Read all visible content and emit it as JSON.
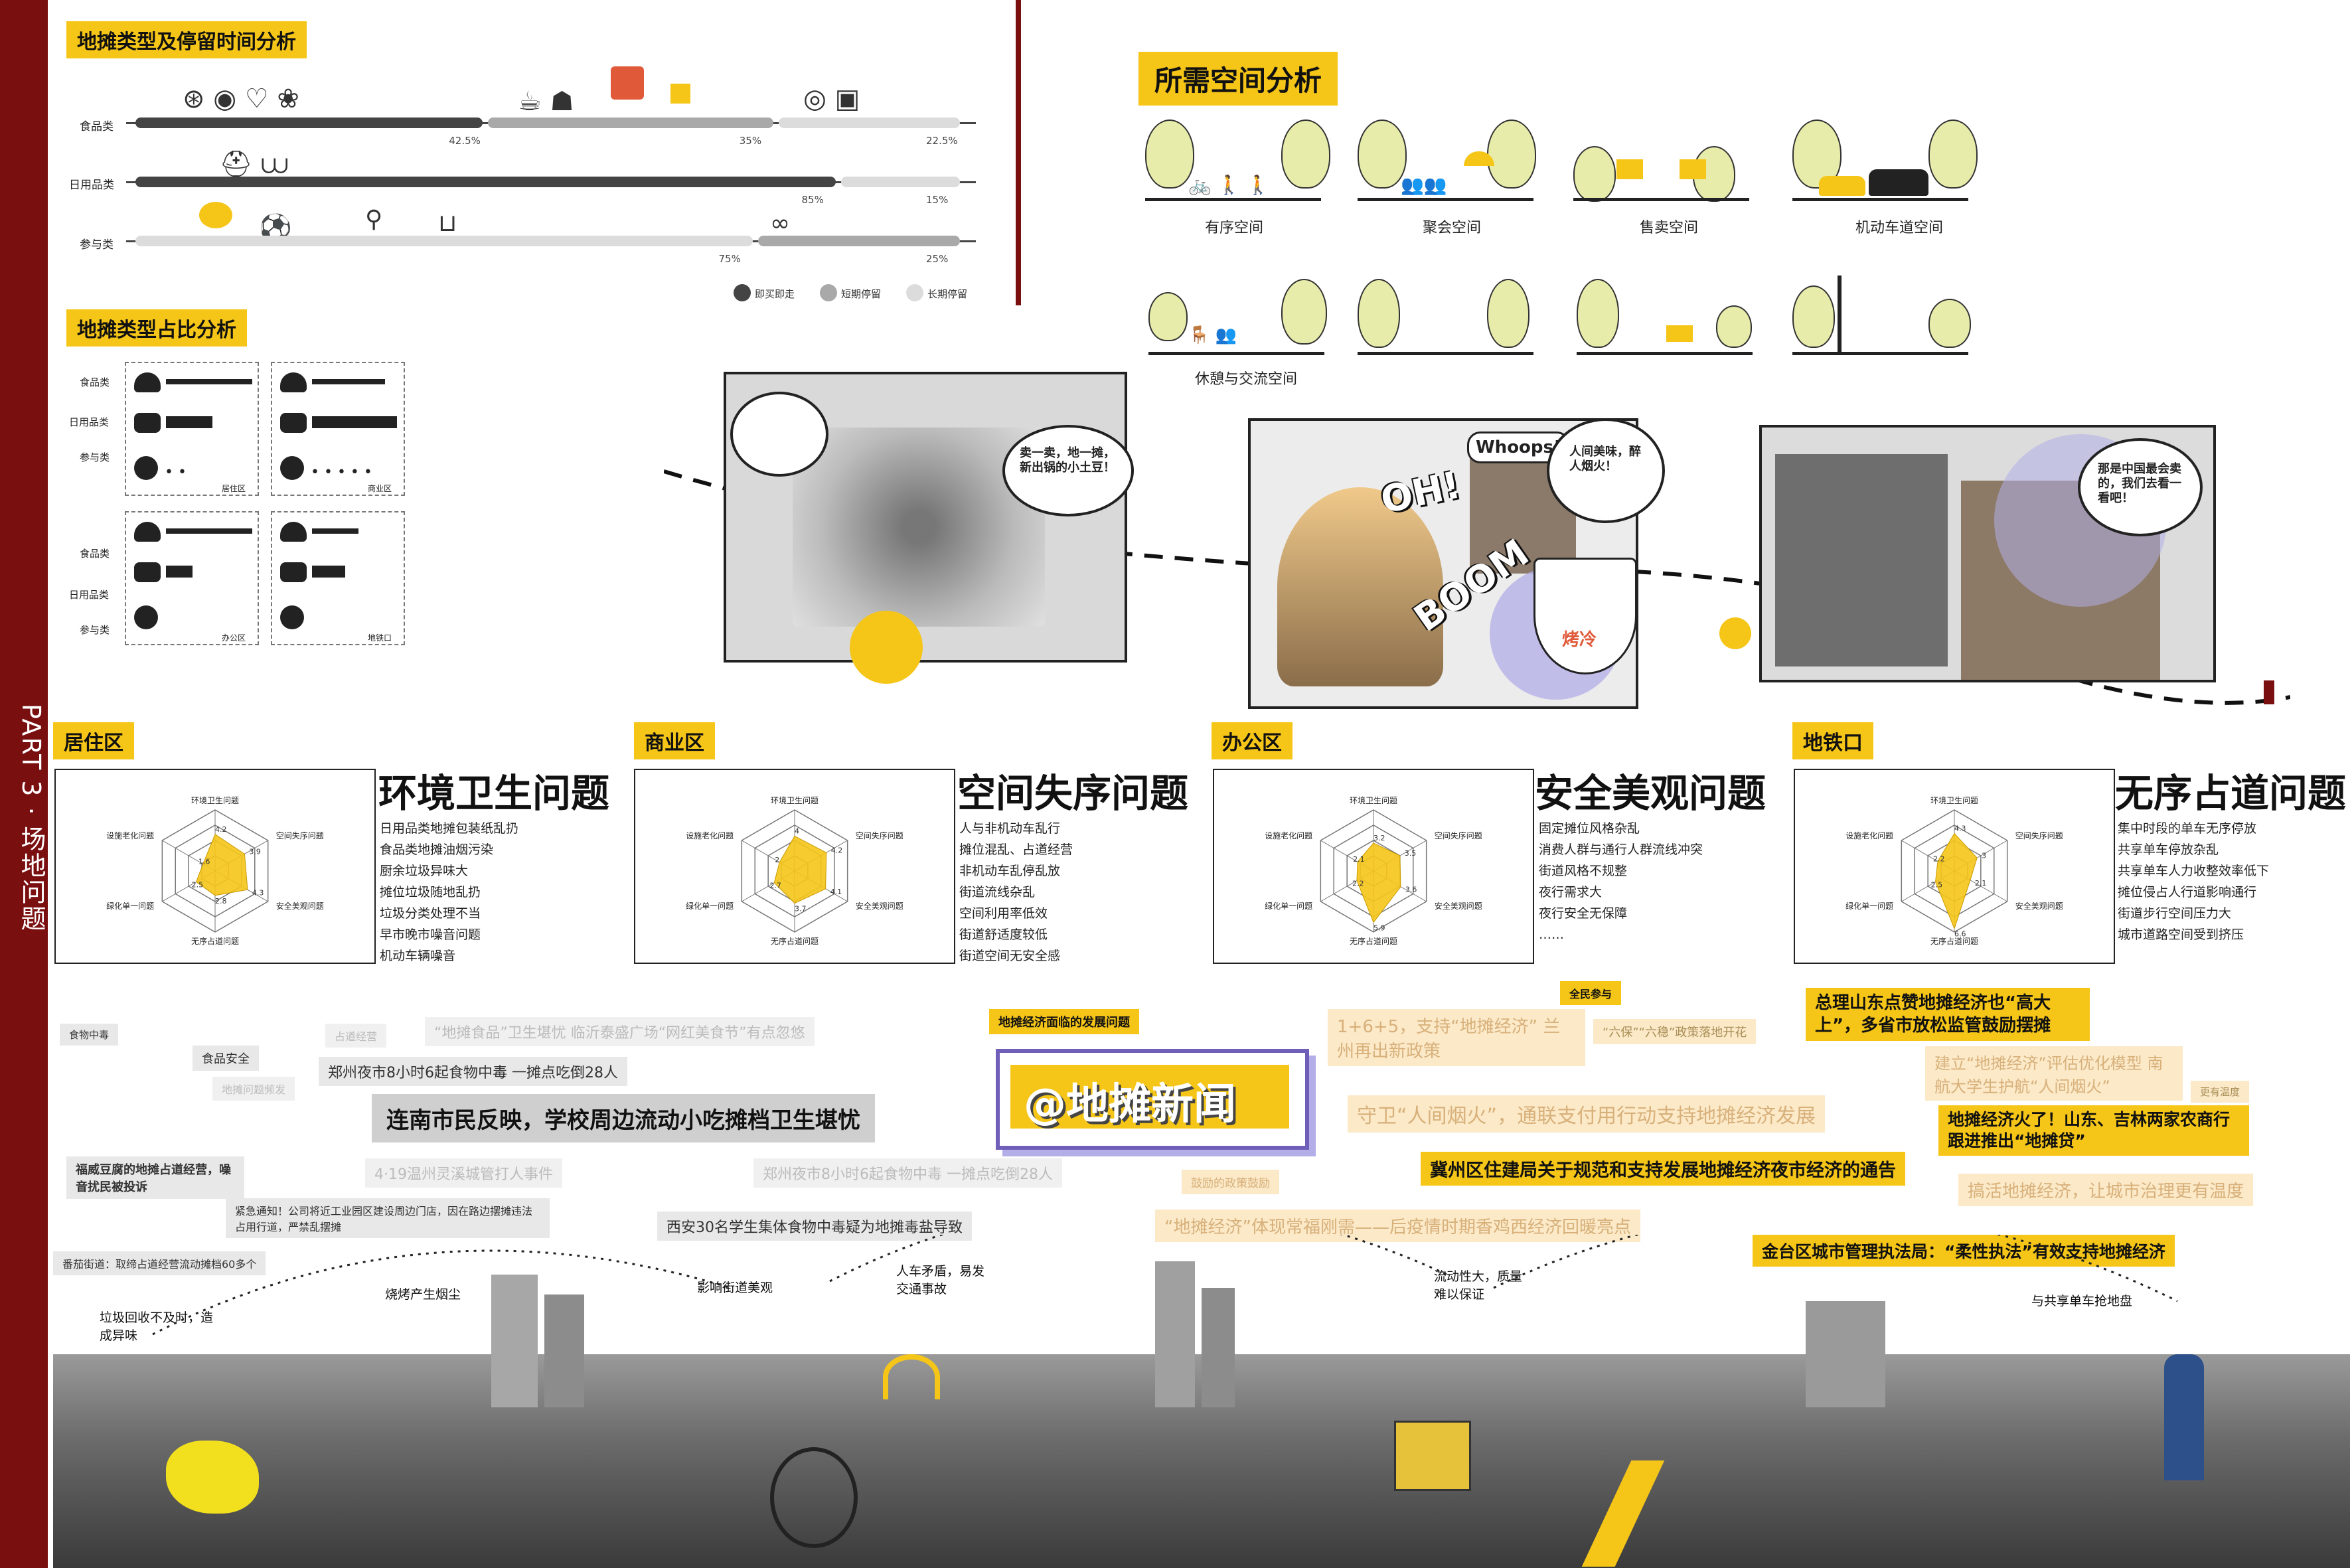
{
  "side": {
    "part_label": "PART 3 · 场地问题"
  },
  "stall_time": {
    "title": "地摊类型及停留时间分析",
    "rows": [
      {
        "label": "食品类",
        "segments": [
          42.5,
          35,
          22.5
        ],
        "pcts": [
          "42.5%",
          "35%",
          "22.5%"
        ]
      },
      {
        "label": "日用品类",
        "segments": [
          85,
          15
        ],
        "pcts": [
          "85%",
          "15%"
        ]
      },
      {
        "label": "参与类",
        "segments": [
          75,
          25
        ],
        "pcts": [
          "75%",
          "25%"
        ]
      }
    ],
    "legend": [
      "即买即走",
      "短期停留",
      "长期停留"
    ],
    "colors": {
      "instant": "#444444",
      "short": "#a9a9a9",
      "long": "#dcdcdc"
    }
  },
  "stall_ratio": {
    "title": "地摊类型占比分析",
    "row_labels": [
      "食品类",
      "日用品类",
      "参与类"
    ],
    "zones": [
      "居住区",
      "商业区",
      "办公区",
      "地铁口"
    ]
  },
  "space": {
    "title": "所需空间分析",
    "items": [
      "有序空间",
      "聚会空间",
      "售卖空间",
      "机动车道空间",
      "休憩与交流空间"
    ]
  },
  "comics": {
    "bubble1": "卖一卖，地一摊，新出锅的小土豆！",
    "bubble2": "人间美味，醉人烟火！",
    "bubble3": "那是中国最会卖的，我们去看一看吧！",
    "fx_oh": "OH!",
    "fx_whoops": "Whoops!",
    "fx_boom": "BOOM",
    "fx_boom2": "BOOM",
    "cup_label": "烤冷"
  },
  "zones": [
    {
      "label": "居住区",
      "problem": "环境卫生问题",
      "items": [
        "日用品类地摊包装纸乱扔",
        "食品类地摊油烟污染",
        "厨余垃圾异味大",
        "摊位垃圾随地乱扔",
        "垃圾分类处理不当",
        "早市晚市噪音问题",
        "机动车辆噪音"
      ]
    },
    {
      "label": "商业区",
      "problem": "空间失序问题",
      "items": [
        "人与非机动车乱行",
        "摊位混乱、占道经营",
        "非机动车乱停乱放",
        "街道流线杂乱",
        "空间利用率低效",
        "街道舒适度较低",
        "街道空间无安全感"
      ]
    },
    {
      "label": "办公区",
      "problem": "安全美观问题",
      "items": [
        "固定摊位风格杂乱",
        "消费人群与通行人群流线冲突",
        "街道风格不规整",
        "夜行需求大",
        "夜行安全无保障",
        "……"
      ]
    },
    {
      "label": "地铁口",
      "problem": "无序占道问题",
      "items": [
        "集中时段的单车无序停放",
        "共享单车停放杂乱",
        "共享单车人力收整效率低下",
        "摊位侵占人行道影响通行",
        "街道步行空间压力大",
        "城市道路空间受到挤压"
      ]
    }
  ],
  "radar": {
    "axes": [
      "环境卫生问题",
      "空间失序问题",
      "安全美观问题",
      "无序占道问题",
      "绿化单一问题",
      "设施老化问题"
    ],
    "zone_values": [
      [
        4.2,
        3.9,
        4.3,
        2.8,
        2.5,
        1.6
      ],
      [
        4,
        4.2,
        4.1,
        3.7,
        2.7,
        2
      ],
      [
        3.2,
        3.5,
        3.6,
        5.9,
        2.2,
        2.1
      ],
      [
        4.3,
        3,
        2.1,
        6.6,
        2.5,
        2.2
      ]
    ]
  },
  "news": {
    "logo": "@地摊新闻",
    "headline_main": "连南市民反映，学校周边流动小吃摊档卫生堪忧",
    "y1": "总理山东点赞地摊经济也“高大上”，多省市放松监管鼓励摆摊",
    "y2": "冀州区住建局关于规范和支持发展地摊经济夜市经济的通告",
    "y3": "地摊经济火了！山东、吉林两家农商行跟进推出“地摊贷”",
    "y4": "地摊经济面临的发展问题",
    "y5": "金台区城市管理执法局：“柔性执法”有效支持地摊经济",
    "y6": "全民参与",
    "g1": "郑州夜市8小时6起食物中毒 一摊点吃倒28人",
    "g2": "西安30名学生集体食物中毒疑为地摊毒盐导致",
    "g3": "“地摊食品”卫生堪忧 临沂泰盛广场“网红美食节”有点忽悠",
    "g4": "4·19温州灵溪城管打人事件",
    "g5": "紧急通知！公司将近工业园区建设周边门店，因在路边摆摊违法占用行道，严禁乱摆摊",
    "g6": "福威豆腐的地摊占道经营，噪音扰民被投诉",
    "g7": "食品安全",
    "g8": "占道经营",
    "g9": "地摊问题频发",
    "ly1": "1+6+5，支持“地摊经济” 兰州再出新政策",
    "ly2": "守卫“人间烟火”，通联支付用行动支持地摊经济发展",
    "ly3": "“地摊经济”体现常福刚需——后疫情时期香鸡西经济回暖亮点",
    "ly4": "建立“地摊经济”评估优化模型 南航大学生护航“人间烟火”",
    "ly5": "搞活地摊经济，让城市治理更有温度",
    "ly6": "“六保”“六稳”政策落地开花",
    "ly7": "更有温度",
    "ly8": "鼓励的政策鼓励"
  },
  "street_annotations": [
    "垃圾回收不及时，造成异味",
    "烧烤产生烟尘",
    "影响街道美观",
    "人车矛盾，易发交通事故",
    "流动性大，质量难以保证",
    "与共享单车抢地盘"
  ]
}
